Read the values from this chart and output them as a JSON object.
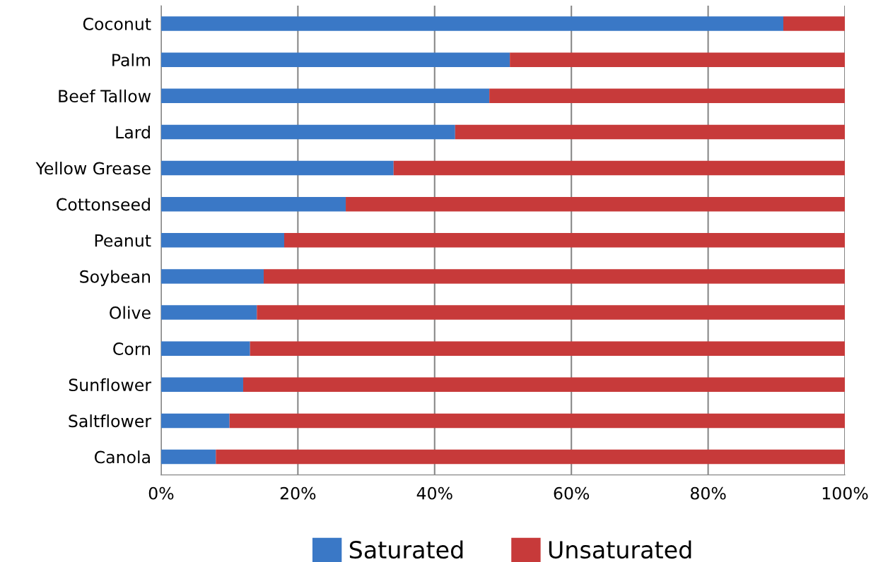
{
  "chart_data": {
    "type": "bar",
    "orientation": "horizontal",
    "stacked": true,
    "categories": [
      "Coconut",
      "Palm",
      "Beef Tallow",
      "Lard",
      "Yellow Grease",
      "Cottonseed",
      "Peanut",
      "Soybean",
      "Olive",
      "Corn",
      "Sunflower",
      "Saltflower",
      "Canola"
    ],
    "series": [
      {
        "name": "Saturated",
        "color": "#3a78c6",
        "values": [
          91,
          51,
          48,
          43,
          34,
          27,
          18,
          15,
          14,
          13,
          12,
          10,
          8
        ]
      },
      {
        "name": "Unsaturated",
        "color": "#c73a3a",
        "values": [
          9,
          49,
          52,
          57,
          66,
          73,
          82,
          85,
          86,
          87,
          88,
          90,
          92
        ]
      }
    ],
    "xlim": [
      0,
      100
    ],
    "xticks": [
      {
        "value": 0,
        "label": "0%"
      },
      {
        "value": 20,
        "label": "20%"
      },
      {
        "value": 40,
        "label": "40%"
      },
      {
        "value": 60,
        "label": "60%"
      },
      {
        "value": 80,
        "label": "80%"
      },
      {
        "value": 100,
        "label": "100%"
      }
    ],
    "grid": "x",
    "legend": "bottom"
  }
}
